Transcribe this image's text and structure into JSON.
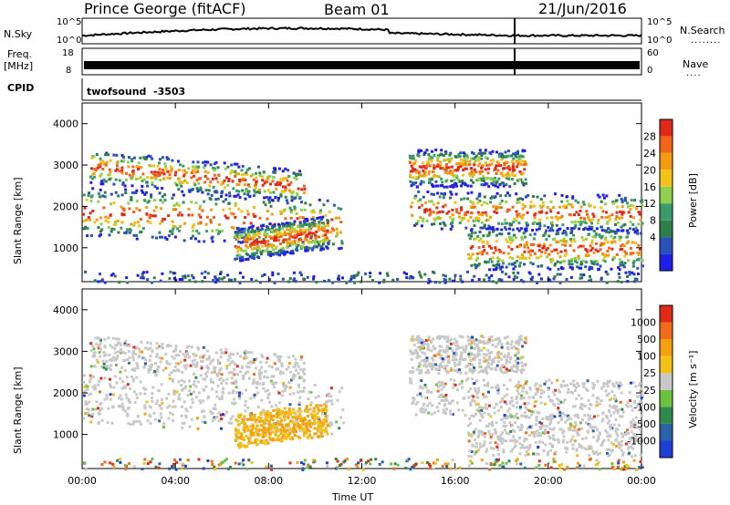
{
  "header": {
    "station": "Prince George (fitACF)",
    "beam": "Beam 01",
    "date": "21/Jun/2016"
  },
  "nsky": {
    "label": "N.Sky",
    "scale_top": "10^5",
    "scale_bot": "10^0",
    "right_label": "N.Search",
    "right_top": "10^5",
    "right_bot": "10^0",
    "right_dots": "........"
  },
  "freq": {
    "label_line1": "Freq.",
    "label_line2": "[MHz]",
    "scale_top": "18",
    "scale_bot": "8",
    "right_label": "Nave",
    "right_top": "60",
    "right_bot": "0",
    "right_dots": "...."
  },
  "cpid": {
    "label": "CPID",
    "program": "twofsound",
    "id": "-3503"
  },
  "chart_data": [
    {
      "type": "heatmap",
      "name_label": "Power",
      "ylabel": "Slant Range [km]",
      "xlabel": "Time UT",
      "colorbar_label": "Power [dB]",
      "ylim": [
        180,
        4500
      ],
      "yticks": [
        1000,
        2000,
        3000,
        4000
      ],
      "xticks": [
        "00:00",
        "04:00",
        "08:00",
        "12:00",
        "16:00",
        "20:00",
        "00:00"
      ],
      "colorbar_ticks": [
        "28",
        "24",
        "20",
        "16",
        "12",
        "8",
        "4"
      ],
      "colors": [
        "#1f1fe6",
        "#2a52b8",
        "#2f7f4a",
        "#3a9a6a",
        "#8fd14f",
        "#f2c21a",
        "#f39c12",
        "#f0641a",
        "#e02a1a"
      ]
    },
    {
      "type": "heatmap",
      "name_label": "Velocity",
      "ylabel": "Slant Range [km]",
      "xlabel": "Time UT",
      "colorbar_label": "Velocity [m s⁻¹]",
      "ylim": [
        180,
        4500
      ],
      "yticks": [
        1000,
        2000,
        3000,
        4000
      ],
      "xticks": [
        "00:00",
        "04:00",
        "08:00",
        "12:00",
        "16:00",
        "20:00",
        "00:00"
      ],
      "colorbar_ticks": [
        "1000",
        "500",
        "100",
        "25",
        "-25",
        "-100",
        "-500",
        "-1000"
      ],
      "colors": [
        "#1f3fd6",
        "#2a62a8",
        "#2f8a4e",
        "#6dc33f",
        "#c8c8c8",
        "#f2c21a",
        "#f3a10f",
        "#f06b1a",
        "#e02a1a"
      ]
    }
  ],
  "xaxis": {
    "title": "Time UT",
    "ticks": [
      "00:00",
      "04:00",
      "08:00",
      "12:00",
      "16:00",
      "20:00",
      "00:00"
    ]
  }
}
